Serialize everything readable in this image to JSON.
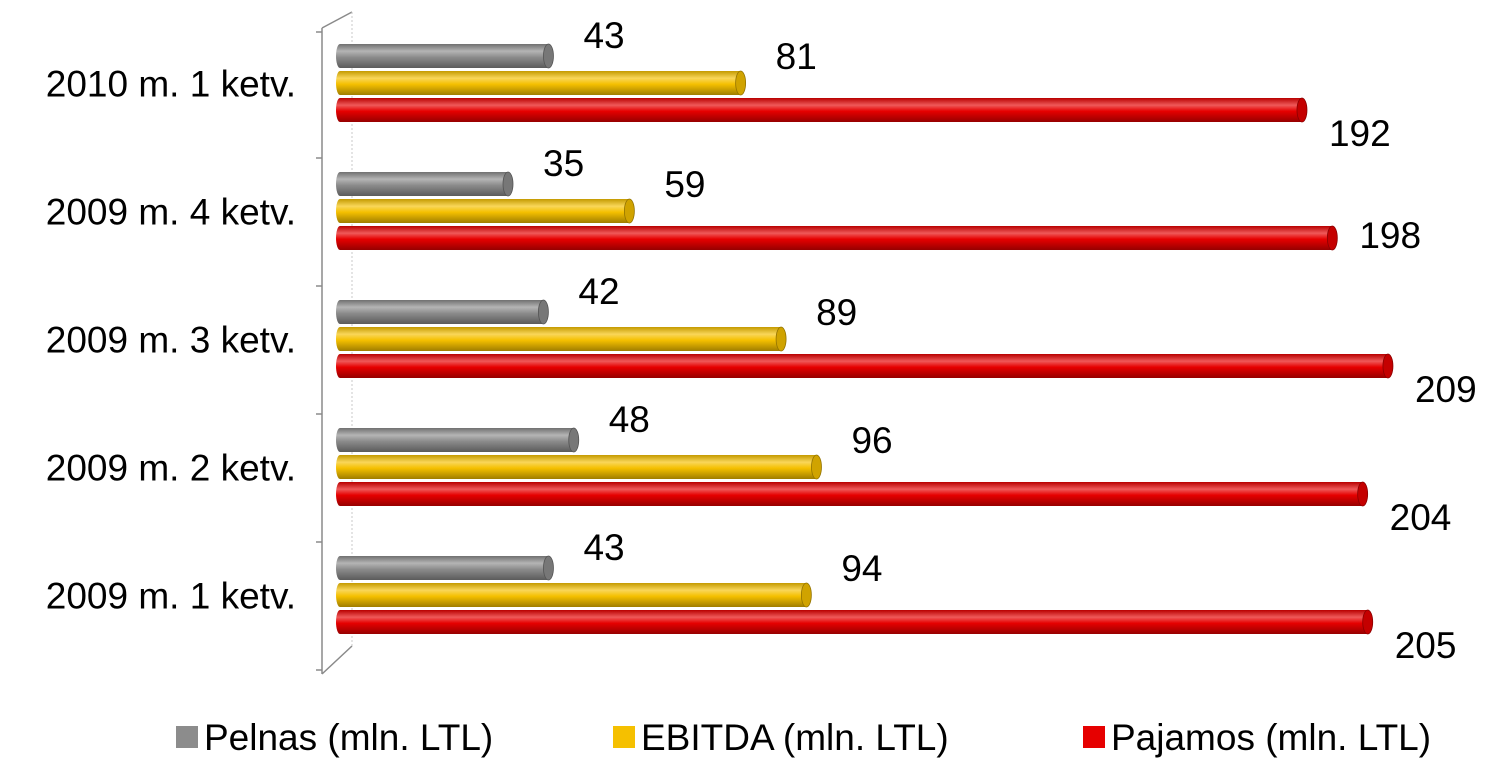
{
  "chart_data": {
    "type": "bar",
    "orientation": "horizontal",
    "style": "3d-cylinder",
    "categories": [
      "2010 m. 1 ketv.",
      "2009 m. 4 ketv.",
      "2009 m. 3 ketv.",
      "2009 m. 2 ketv.",
      "2009 m. 1 ketv."
    ],
    "series": [
      {
        "name": "Pelnas (mln. LTL)",
        "values": [
          43,
          35,
          42,
          48,
          43
        ],
        "color": "#8c8c8c"
      },
      {
        "name": "EBITDA (mln. LTL)",
        "values": [
          81,
          59,
          89,
          96,
          94
        ],
        "color": "#f5c000"
      },
      {
        "name": "Pajamos (mln. LTL)",
        "values": [
          192,
          198,
          209,
          204,
          205
        ],
        "color": "#e60000"
      }
    ],
    "title": "",
    "xlabel": "",
    "ylabel": "",
    "xlim": [
      0,
      210
    ],
    "grid": false,
    "legend": "bottom"
  }
}
